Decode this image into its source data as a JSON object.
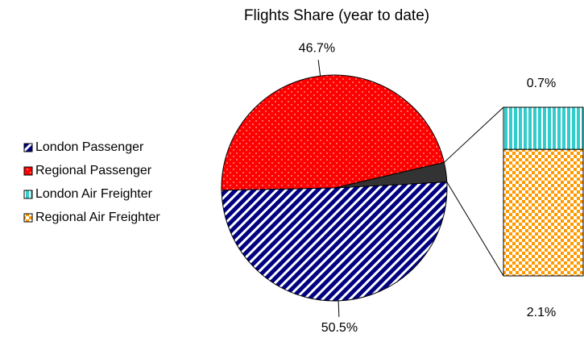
{
  "chart_data": {
    "type": "pie",
    "title": "Flights Share (year to date)",
    "categories": [
      "London Passenger",
      "Regional Passenger",
      "London Air Freighter",
      "Regional Air Freighter"
    ],
    "values": [
      50.5,
      46.7,
      0.7,
      2.1
    ],
    "value_labels": [
      "50.5%",
      "46.7%",
      "0.7%",
      "2.1%"
    ],
    "colors": [
      "#000080",
      "#ff0000",
      "#33cccc",
      "#ff9900"
    ],
    "legend": "left"
  }
}
